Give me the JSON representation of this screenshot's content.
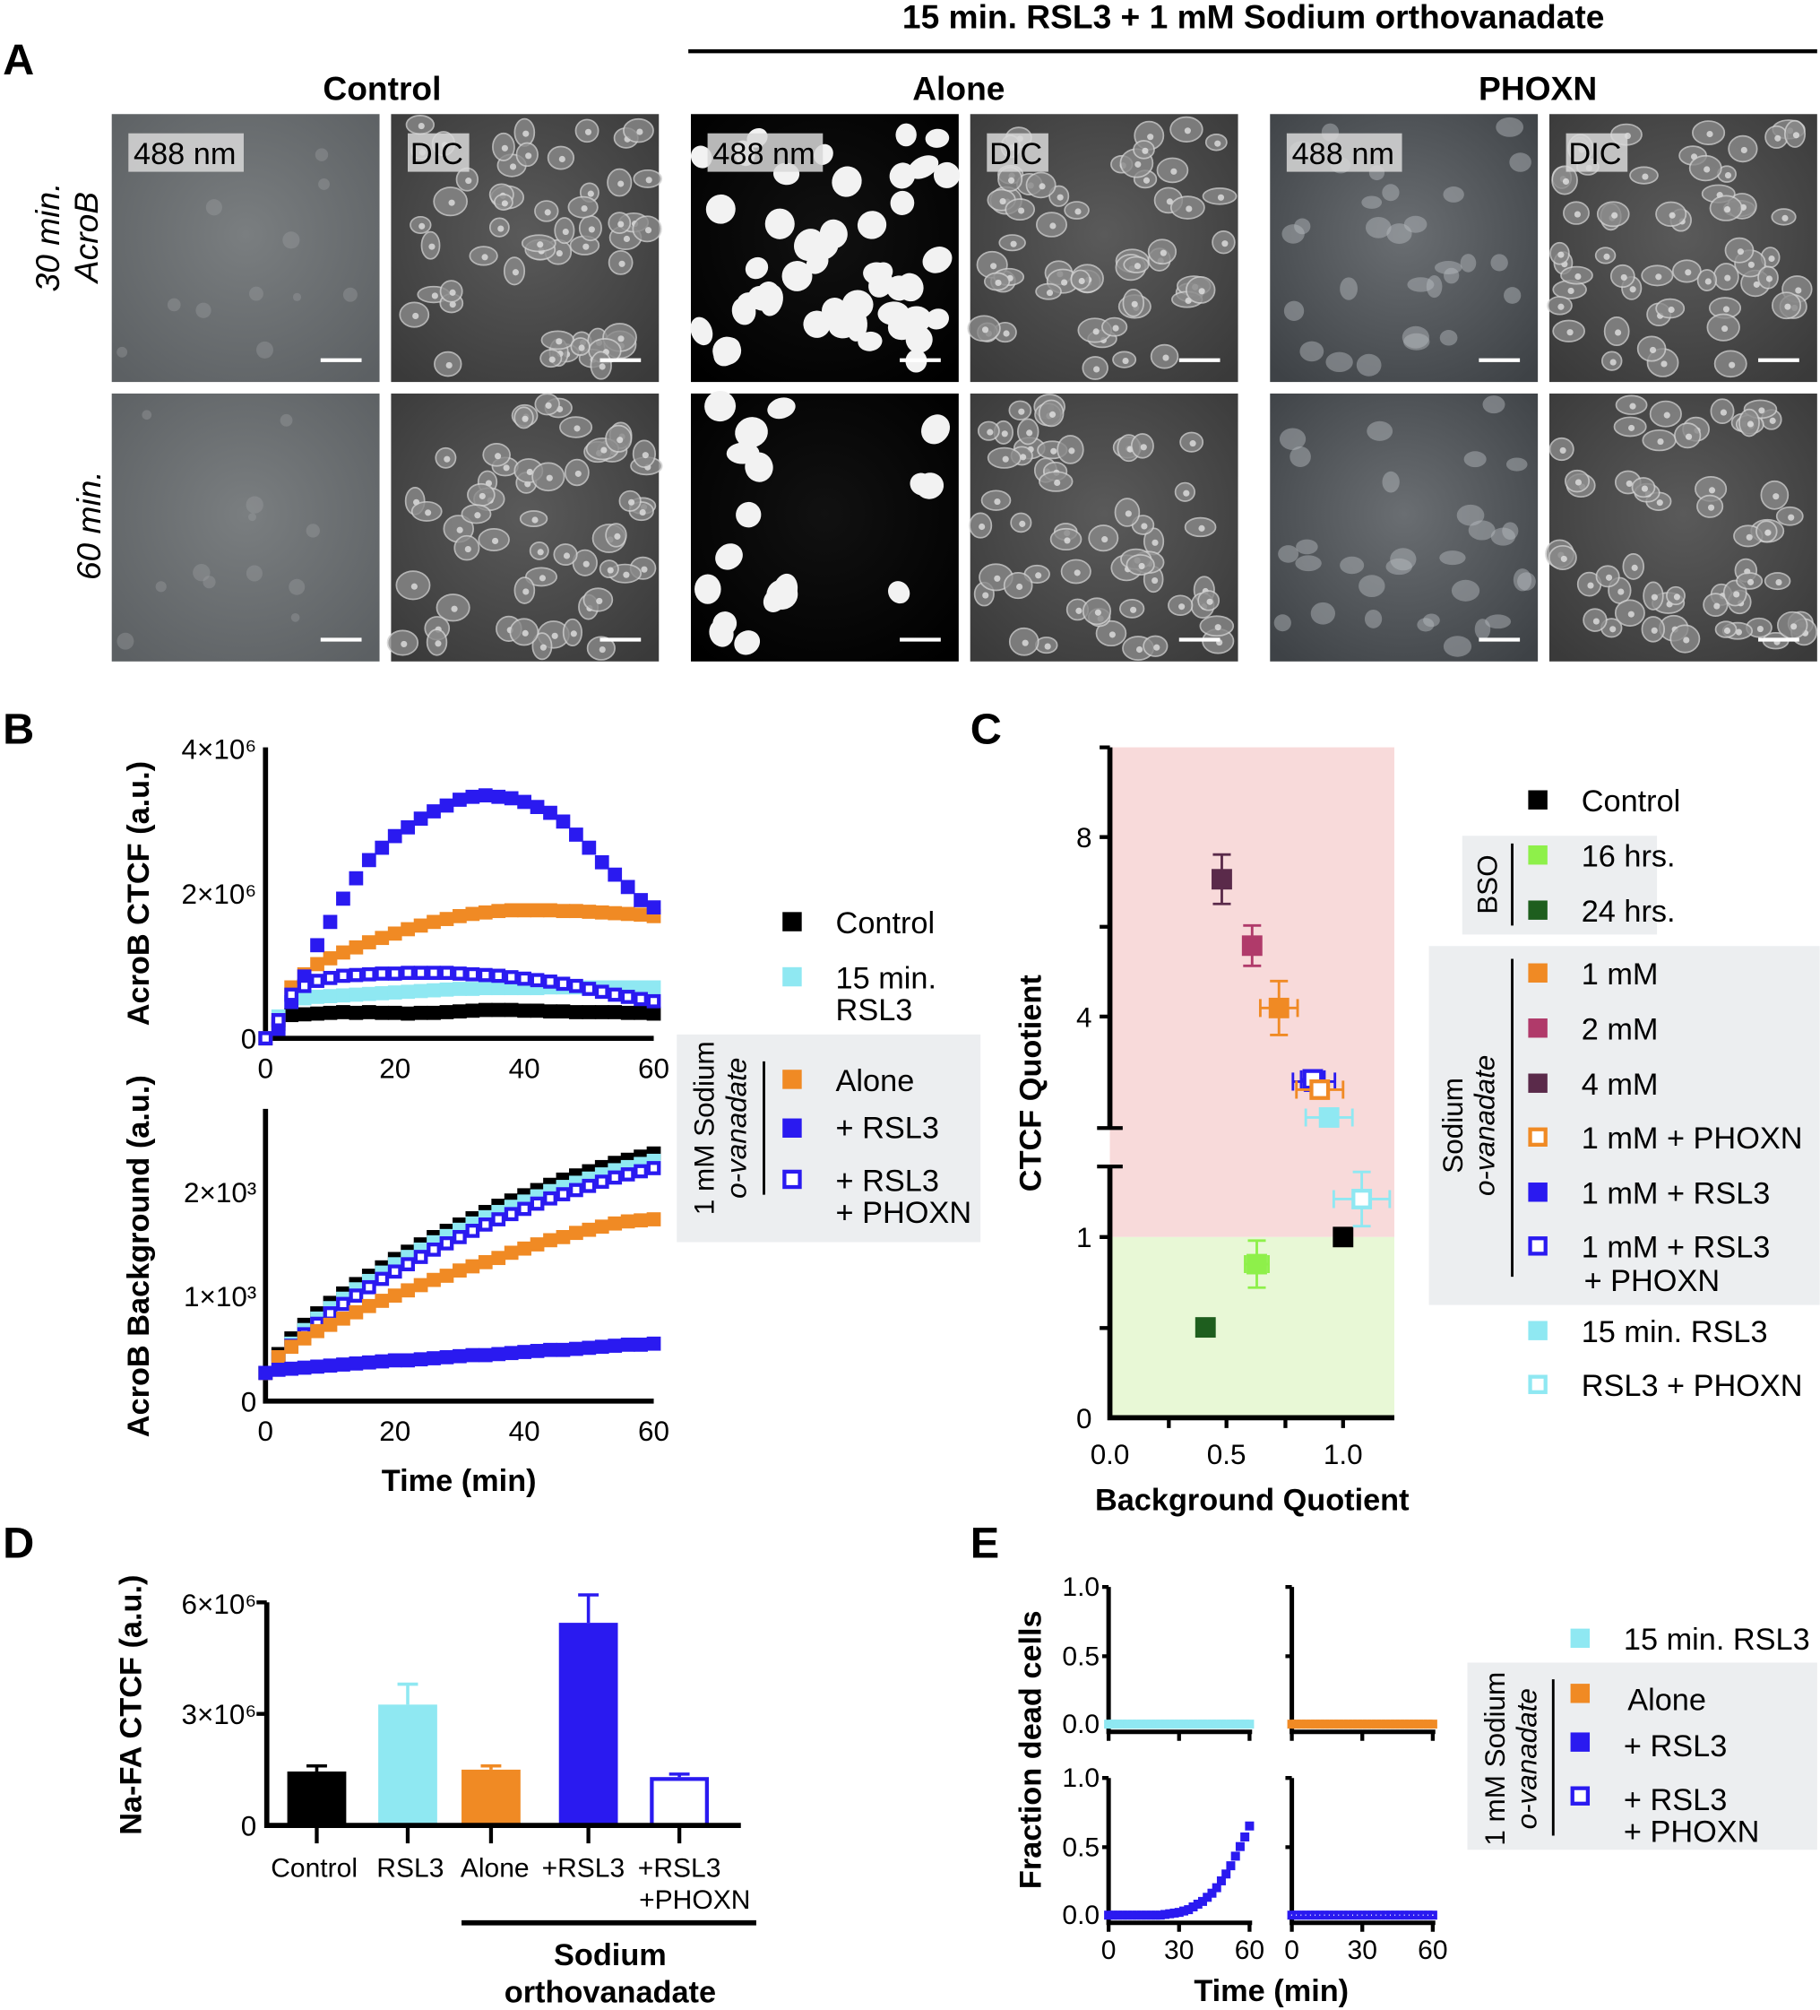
{
  "panel_a": {
    "label": "A",
    "super_title": "15 min. RSL3 + 1 mM Sodium orthovanadate",
    "columns": [
      "Control",
      "Alone",
      "PHOXN"
    ],
    "row_labels": [
      [
        "30 min.",
        "AcroB"
      ],
      [
        "60 min."
      ]
    ],
    "channels": [
      "488 nm",
      "DIC"
    ]
  },
  "panel_labels": {
    "b": "B",
    "c": "C",
    "d": "D",
    "e": "E"
  },
  "colors": {
    "control": "#000000",
    "rsl3": "#8fe8f2",
    "alone": "#f08a24",
    "plus_rsl3": "#2a1af0",
    "two_mM": "#b03a6a",
    "four_mM": "#5a2a4a",
    "bso16": "#8ef04a",
    "bso24": "#1e5e1e",
    "pink_zone": "#f8dada",
    "green_zone": "#e8f8d6",
    "legend_box": "#eceef0"
  },
  "chart_data": [
    {
      "id": "B-top",
      "type": "scatter",
      "ylabel": "AcroB CTCF (a.u.)",
      "xlabel": "",
      "xlim": [
        0,
        60
      ],
      "ylim": [
        0,
        4000000
      ],
      "xticks": [
        "0",
        "20",
        "40",
        "60"
      ],
      "yticks": [
        "0",
        "2×10⁶",
        "4×10⁶"
      ],
      "x": [
        0,
        2,
        4,
        6,
        8,
        10,
        12,
        14,
        16,
        18,
        20,
        22,
        24,
        26,
        28,
        30,
        32,
        34,
        36,
        38,
        40,
        42,
        44,
        46,
        48,
        50,
        52,
        54,
        56,
        58,
        60
      ],
      "series_unit": 1000000,
      "series": [
        {
          "name": "Control",
          "style": "filled",
          "color": "#000000",
          "values": [
            0,
            0.2,
            0.32,
            0.33,
            0.34,
            0.35,
            0.36,
            0.35,
            0.36,
            0.35,
            0.35,
            0.34,
            0.35,
            0.35,
            0.36,
            0.37,
            0.38,
            0.39,
            0.39,
            0.39,
            0.38,
            0.38,
            0.37,
            0.37,
            0.36,
            0.36,
            0.36,
            0.36,
            0.35,
            0.35,
            0.34
          ]
        },
        {
          "name": "15 min. RSL3",
          "style": "filled",
          "color": "#8fe8f2",
          "values": [
            0,
            0.3,
            0.5,
            0.55,
            0.57,
            0.58,
            0.59,
            0.6,
            0.61,
            0.62,
            0.63,
            0.64,
            0.65,
            0.66,
            0.67,
            0.68,
            0.68,
            0.69,
            0.69,
            0.69,
            0.69,
            0.69,
            0.7,
            0.7,
            0.7,
            0.7,
            0.7,
            0.7,
            0.7,
            0.7,
            0.7
          ]
        },
        {
          "name": "Alone",
          "style": "filled",
          "color": "#f08a24",
          "values": [
            0,
            0.25,
            0.7,
            0.88,
            1.02,
            1.1,
            1.18,
            1.25,
            1.32,
            1.38,
            1.44,
            1.5,
            1.55,
            1.6,
            1.64,
            1.68,
            1.71,
            1.73,
            1.75,
            1.76,
            1.76,
            1.76,
            1.76,
            1.75,
            1.75,
            1.74,
            1.73,
            1.72,
            1.71,
            1.7,
            1.68
          ]
        },
        {
          "name": "+ RSL3",
          "style": "filled",
          "color": "#2a1af0",
          "values": [
            0,
            0.13,
            0.5,
            0.85,
            1.28,
            1.6,
            1.92,
            2.2,
            2.45,
            2.62,
            2.78,
            2.9,
            3.02,
            3.12,
            3.2,
            3.28,
            3.32,
            3.34,
            3.32,
            3.3,
            3.25,
            3.18,
            3.1,
            2.98,
            2.8,
            2.62,
            2.42,
            2.25,
            2.08,
            1.9,
            1.8
          ]
        },
        {
          "name": "+ RSL3 + PHOXN",
          "style": "open",
          "color": "#2a1af0",
          "values": [
            0,
            0.25,
            0.6,
            0.72,
            0.79,
            0.83,
            0.86,
            0.87,
            0.88,
            0.89,
            0.89,
            0.9,
            0.9,
            0.9,
            0.9,
            0.89,
            0.88,
            0.87,
            0.86,
            0.84,
            0.82,
            0.8,
            0.78,
            0.75,
            0.72,
            0.68,
            0.64,
            0.6,
            0.57,
            0.54,
            0.51
          ]
        }
      ]
    },
    {
      "id": "B-bottom",
      "type": "scatter",
      "ylabel": "AcroB Background (a.u.)",
      "xlabel": "Time (min)",
      "xlim": [
        0,
        60
      ],
      "ylim": [
        0,
        2800
      ],
      "xticks": [
        "0",
        "20",
        "40",
        "60"
      ],
      "yticks": [
        "0",
        "1×10³",
        "2×10³"
      ],
      "x": [
        0,
        2,
        4,
        6,
        8,
        10,
        12,
        14,
        16,
        18,
        20,
        22,
        24,
        26,
        28,
        30,
        32,
        34,
        36,
        38,
        40,
        42,
        44,
        46,
        48,
        50,
        52,
        54,
        56,
        58,
        60
      ],
      "series_unit": 1000,
      "series": [
        {
          "name": "Control",
          "style": "filled",
          "color": "#000000",
          "values": [
            0.27,
            0.45,
            0.6,
            0.73,
            0.84,
            0.94,
            1.03,
            1.12,
            1.2,
            1.28,
            1.36,
            1.43,
            1.5,
            1.57,
            1.63,
            1.69,
            1.75,
            1.81,
            1.87,
            1.92,
            1.97,
            2.02,
            2.07,
            2.12,
            2.16,
            2.2,
            2.24,
            2.28,
            2.31,
            2.34,
            2.37
          ]
        },
        {
          "name": "15 min. RSL3",
          "style": "filled",
          "color": "#8fe8f2",
          "values": [
            0.27,
            0.4,
            0.55,
            0.68,
            0.79,
            0.89,
            0.98,
            1.07,
            1.15,
            1.23,
            1.31,
            1.38,
            1.45,
            1.52,
            1.58,
            1.64,
            1.7,
            1.76,
            1.81,
            1.86,
            1.91,
            1.96,
            2.01,
            2.05,
            2.09,
            2.13,
            2.17,
            2.21,
            2.24,
            2.27,
            2.3
          ]
        },
        {
          "name": "+ RSL3 + PHOXN",
          "style": "open",
          "color": "#2a1af0",
          "values": [
            0.27,
            0.4,
            0.53,
            0.64,
            0.74,
            0.84,
            0.93,
            1.01,
            1.09,
            1.17,
            1.24,
            1.31,
            1.38,
            1.45,
            1.51,
            1.57,
            1.63,
            1.69,
            1.74,
            1.79,
            1.84,
            1.89,
            1.94,
            1.98,
            2.02,
            2.06,
            2.1,
            2.14,
            2.17,
            2.2,
            2.23
          ]
        },
        {
          "name": "Alone",
          "style": "filled",
          "color": "#f08a24",
          "values": [
            0.27,
            0.42,
            0.52,
            0.6,
            0.67,
            0.73,
            0.79,
            0.85,
            0.91,
            0.96,
            1.01,
            1.06,
            1.11,
            1.16,
            1.2,
            1.25,
            1.29,
            1.33,
            1.37,
            1.42,
            1.46,
            1.5,
            1.54,
            1.57,
            1.61,
            1.64,
            1.67,
            1.7,
            1.72,
            1.73,
            1.74
          ]
        },
        {
          "name": "+ RSL3",
          "style": "filled",
          "color": "#2a1af0",
          "values": [
            0.27,
            0.3,
            0.31,
            0.32,
            0.33,
            0.34,
            0.35,
            0.36,
            0.37,
            0.38,
            0.39,
            0.39,
            0.4,
            0.41,
            0.42,
            0.43,
            0.44,
            0.44,
            0.45,
            0.46,
            0.47,
            0.48,
            0.49,
            0.49,
            0.5,
            0.51,
            0.52,
            0.53,
            0.54,
            0.54,
            0.55
          ]
        }
      ],
      "legend": {
        "items": [
          {
            "label": "Control",
            "style": "filled",
            "color": "#000000"
          },
          {
            "label": "15 min.",
            "label2": "RSL3",
            "style": "filled",
            "color": "#8fe8f2"
          }
        ],
        "group_title": "1 mM Sodium",
        "group_subtitle": "o-vanadate",
        "group_items": [
          {
            "label": "Alone",
            "style": "filled",
            "color": "#f08a24"
          },
          {
            "label": "+ RSL3",
            "style": "filled",
            "color": "#2a1af0"
          },
          {
            "label": "+ RSL3",
            "label2": "+ PHOXN",
            "style": "open",
            "color": "#2a1af0"
          }
        ]
      }
    },
    {
      "id": "C",
      "type": "scatter",
      "xlabel": "Background Quotient",
      "ylabel": "CTCF Quotient",
      "xlim": [
        0,
        1.2
      ],
      "ylim": [
        0,
        10
      ],
      "y_axis_break": true,
      "xticks": [
        "0.0",
        "0.5",
        "1.0"
      ],
      "yticks": [
        "0",
        "1",
        "4",
        "8"
      ],
      "shading": [
        {
          "from": 1,
          "to": 10,
          "color": "#f8dada"
        },
        {
          "from": 0,
          "to": 1,
          "color": "#e8f8d6"
        }
      ],
      "points": [
        {
          "name": "Control",
          "x": 1.0,
          "y": 1.0,
          "xerr": 0,
          "yerr": 0,
          "style": "filled",
          "color": "#000000"
        },
        {
          "name": "16 hrs.",
          "x": 0.63,
          "y": 0.85,
          "xerr": 0.05,
          "yerr": 0.13,
          "style": "filled",
          "color": "#8ef04a"
        },
        {
          "name": "24 hrs.",
          "x": 0.41,
          "y": 0.5,
          "xerr": 0.02,
          "yerr": 0.04,
          "style": "filled",
          "color": "#1e5e1e"
        },
        {
          "name": "1 mM",
          "x": 0.725,
          "y": 4.19,
          "xerr": 0.08,
          "yerr": 0.6,
          "style": "filled",
          "color": "#f08a24"
        },
        {
          "name": "2 mM",
          "x": 0.61,
          "y": 5.58,
          "xerr": 0.02,
          "yerr": 0.45,
          "style": "filled",
          "color": "#b03a6a"
        },
        {
          "name": "4 mM",
          "x": 0.48,
          "y": 7.06,
          "xerr": 0.02,
          "yerr": 0.55,
          "style": "filled",
          "color": "#5a2a4a"
        },
        {
          "name": "1 mM + RSL3",
          "x": 0.875,
          "y": 2.55,
          "xerr": 0.09,
          "yerr": 0.2,
          "style": "filled",
          "color": "#2a1af0"
        },
        {
          "name": "1 mM + RSL3 + PHOXN",
          "x": 0.87,
          "y": 2.6,
          "xerr": 0.05,
          "yerr": 0.15,
          "style": "open",
          "color": "#2a1af0"
        },
        {
          "name": "1 mM + PHOXN",
          "x": 0.9,
          "y": 2.37,
          "xerr": 0.1,
          "yerr": 0.12,
          "style": "open",
          "color": "#f08a24"
        },
        {
          "name": "15 min. RSL3",
          "x": 0.94,
          "y": 1.75,
          "xerr": 0.1,
          "yerr": 0.05,
          "style": "filled",
          "color": "#8fe8f2"
        },
        {
          "name": "RSL3 + PHOXN",
          "x": 1.08,
          "y": 1.21,
          "xerr": 0.12,
          "yerr": 0.15,
          "style": "open",
          "color": "#8fe8f2"
        }
      ],
      "legend": {
        "top": [
          {
            "label": "Control",
            "style": "filled",
            "color": "#000000"
          }
        ],
        "bso_title": "BSO",
        "bso_items": [
          {
            "label": "16 hrs.",
            "style": "filled",
            "color": "#8ef04a"
          },
          {
            "label": "24 hrs.",
            "style": "filled",
            "color": "#1e5e1e"
          }
        ],
        "sv_title": "Sodium",
        "sv_subtitle": "o-vanadate",
        "sv_items": [
          {
            "label": "1 mM",
            "style": "filled",
            "color": "#f08a24"
          },
          {
            "label": "2 mM",
            "style": "filled",
            "color": "#b03a6a"
          },
          {
            "label": "4 mM",
            "style": "filled",
            "color": "#5a2a4a"
          },
          {
            "label": "1 mM + PHOXN",
            "style": "open",
            "color": "#f08a24"
          },
          {
            "label": "1 mM + RSL3",
            "style": "filled",
            "color": "#2a1af0"
          },
          {
            "label": "1 mM + RSL3",
            "label2": "+ PHOXN",
            "style": "open",
            "color": "#2a1af0"
          }
        ],
        "bottom": [
          {
            "label": "15 min. RSL3",
            "style": "filled",
            "color": "#8fe8f2"
          },
          {
            "label": "RSL3 + PHOXN",
            "style": "open",
            "color": "#8fe8f2"
          }
        ]
      }
    },
    {
      "id": "D",
      "type": "bar",
      "ylabel": "Na-FA CTCF (a.u.)",
      "ylim": [
        0,
        6000000
      ],
      "yticks": [
        "0",
        "3×10⁶",
        "6×10⁶"
      ],
      "categories": [
        "Control",
        "RSL3",
        "Alone",
        "+RSL3",
        "+RSL3"
      ],
      "category_line2": [
        "",
        "",
        "",
        "",
        "+PHOXN"
      ],
      "group_label": [
        "Sodium",
        "orthovanadate"
      ],
      "values": [
        1450000,
        3250000,
        1500000,
        5450000,
        1300000
      ],
      "errors": [
        150000,
        550000,
        100000,
        750000,
        80000
      ],
      "styles": [
        "filled",
        "filled",
        "filled",
        "filled",
        "open"
      ],
      "colors": [
        "#000000",
        "#8fe8f2",
        "#f08a24",
        "#2a1af0",
        "#2a1af0"
      ]
    },
    {
      "id": "E",
      "type": "scatter",
      "ylabel": "Fraction dead cells",
      "xlabel": "Time (min)",
      "xlim": [
        0,
        60
      ],
      "ylim": [
        0,
        1.0
      ],
      "xticks": [
        "0",
        "30",
        "60"
      ],
      "yticks": [
        "0.0",
        "0.5",
        "1.0"
      ],
      "x": [
        0,
        2,
        4,
        6,
        8,
        10,
        12,
        14,
        16,
        18,
        20,
        22,
        24,
        26,
        28,
        30,
        32,
        34,
        36,
        38,
        40,
        42,
        44,
        46,
        48,
        50,
        52,
        54,
        56,
        58,
        60
      ],
      "panels": [
        {
          "name": "15 min. RSL3",
          "style": "filled",
          "color": "#8fe8f2",
          "values": [
            0,
            0,
            0,
            0,
            0,
            0,
            0,
            0,
            0,
            0,
            0,
            0,
            0,
            0,
            0,
            0,
            0,
            0,
            0,
            0,
            0,
            0,
            0,
            0,
            0,
            0,
            0,
            0,
            0,
            0,
            0
          ]
        },
        {
          "name": "Alone",
          "style": "filled",
          "color": "#f08a24",
          "values": [
            0,
            0,
            0,
            0,
            0,
            0,
            0,
            0,
            0,
            0,
            0,
            0,
            0,
            0,
            0,
            0,
            0,
            0,
            0,
            0,
            0,
            0,
            0,
            0,
            0,
            0,
            0,
            0,
            0,
            0,
            0
          ]
        },
        {
          "name": "+ RSL3",
          "style": "filled",
          "color": "#2a1af0",
          "values": [
            0,
            0,
            0,
            0,
            0,
            0,
            0,
            0,
            0,
            0,
            0,
            0,
            0.005,
            0.01,
            0.015,
            0.02,
            0.03,
            0.04,
            0.06,
            0.08,
            0.1,
            0.13,
            0.16,
            0.2,
            0.25,
            0.3,
            0.36,
            0.43,
            0.5,
            0.57,
            0.65
          ]
        },
        {
          "name": "+ RSL3 + PHOXN",
          "style": "open",
          "color": "#2a1af0",
          "values": [
            0,
            0,
            0,
            0,
            0,
            0,
            0,
            0,
            0,
            0,
            0,
            0,
            0,
            0,
            0,
            0,
            0,
            0,
            0,
            0,
            0,
            0,
            0,
            0,
            0,
            0,
            0,
            0,
            0,
            0,
            0
          ]
        }
      ],
      "legend": {
        "top": [
          {
            "label": "15 min. RSL3",
            "style": "filled",
            "color": "#8fe8f2"
          }
        ],
        "group_title": "1 mM Sodium",
        "group_subtitle": "o-vanadate",
        "group_items": [
          {
            "label": "Alone",
            "style": "filled",
            "color": "#f08a24"
          },
          {
            "label": "+ RSL3",
            "style": "filled",
            "color": "#2a1af0"
          },
          {
            "label": "+ RSL3",
            "label2": "+ PHOXN",
            "style": "open",
            "color": "#2a1af0"
          }
        ]
      }
    }
  ]
}
